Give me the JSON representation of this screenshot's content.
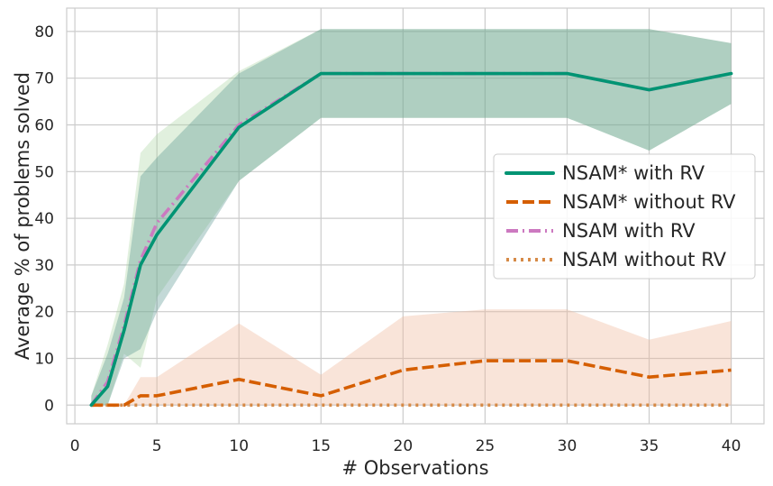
{
  "chart_data": {
    "type": "line",
    "title": "",
    "xlabel": "# Observations",
    "ylabel": "Average % of problems solved",
    "xlim": [
      -0.5,
      42
    ],
    "ylim": [
      -4,
      85
    ],
    "xticks": [
      0,
      5,
      10,
      15,
      20,
      25,
      30,
      35,
      40
    ],
    "yticks": [
      0,
      10,
      20,
      30,
      40,
      50,
      60,
      70,
      80
    ],
    "grid": true,
    "legend_position": "center-right",
    "series": [
      {
        "name": "NSAM* with RV",
        "color": "#009473",
        "dash": "solid",
        "x": [
          1,
          2,
          3,
          4,
          5,
          10,
          15,
          20,
          25,
          30,
          35,
          40
        ],
        "y": [
          0,
          4,
          16,
          30,
          36.5,
          59.5,
          71,
          71,
          71,
          71,
          67.5,
          71
        ],
        "band_low": [
          0,
          0,
          10,
          12,
          20,
          48,
          61.5,
          61.5,
          61.5,
          61.5,
          54.5,
          64.5
        ],
        "band_high": [
          2,
          11,
          23,
          49,
          53,
          71,
          80.5,
          80.5,
          80.5,
          80.5,
          80.5,
          77.5
        ]
      },
      {
        "name": "NSAM* without RV",
        "color": "#d55e00",
        "dash": "dashed",
        "x": [
          1,
          2,
          3,
          4,
          5,
          10,
          15,
          20,
          25,
          30,
          35,
          40
        ],
        "y": [
          0,
          0,
          0,
          2,
          2,
          5.5,
          2,
          7.5,
          9.5,
          9.5,
          6,
          7.5
        ],
        "band_low": [
          0,
          0,
          0,
          0,
          0,
          0,
          0,
          0,
          0,
          0,
          0,
          0
        ],
        "band_high": [
          0,
          0,
          0,
          6,
          6,
          17.5,
          6.5,
          19,
          20.5,
          20.5,
          14,
          18
        ]
      },
      {
        "name": "NSAM with RV",
        "color": "#cc79c0",
        "dash": "dashdot",
        "x": [
          1,
          2,
          3,
          4,
          5,
          10,
          15,
          20,
          25,
          30,
          35,
          40
        ],
        "y": [
          0,
          5,
          17,
          31,
          39,
          60,
          71,
          71,
          71,
          71,
          67.5,
          71
        ],
        "band_low": [
          0,
          0,
          11,
          8,
          23,
          48,
          61.5,
          61.5,
          61.5,
          61.5,
          54.5,
          64.5
        ],
        "band_high": [
          2,
          13,
          26,
          54,
          58,
          71.5,
          80.5,
          80.5,
          80.5,
          80.5,
          80.5,
          77.5
        ]
      },
      {
        "name": "NSAM without RV",
        "color": "#d68a47",
        "dash": "dotted",
        "x": [
          1,
          2,
          3,
          4,
          5,
          10,
          15,
          20,
          25,
          30,
          35,
          40
        ],
        "y": [
          0,
          0,
          0,
          0,
          0,
          0,
          0,
          0,
          0,
          0,
          0,
          0
        ],
        "band_low": null,
        "band_high": null
      }
    ],
    "bands": [
      {
        "series": "NSAM with RV",
        "color": "#a8d5a0",
        "opacity": 0.35
      },
      {
        "series": "NSAM* without RV",
        "color": "#f0b89a",
        "opacity": 0.38
      },
      {
        "series": "NSAM* with RV",
        "color": "#4f8f8a",
        "opacity": 0.34
      }
    ]
  }
}
